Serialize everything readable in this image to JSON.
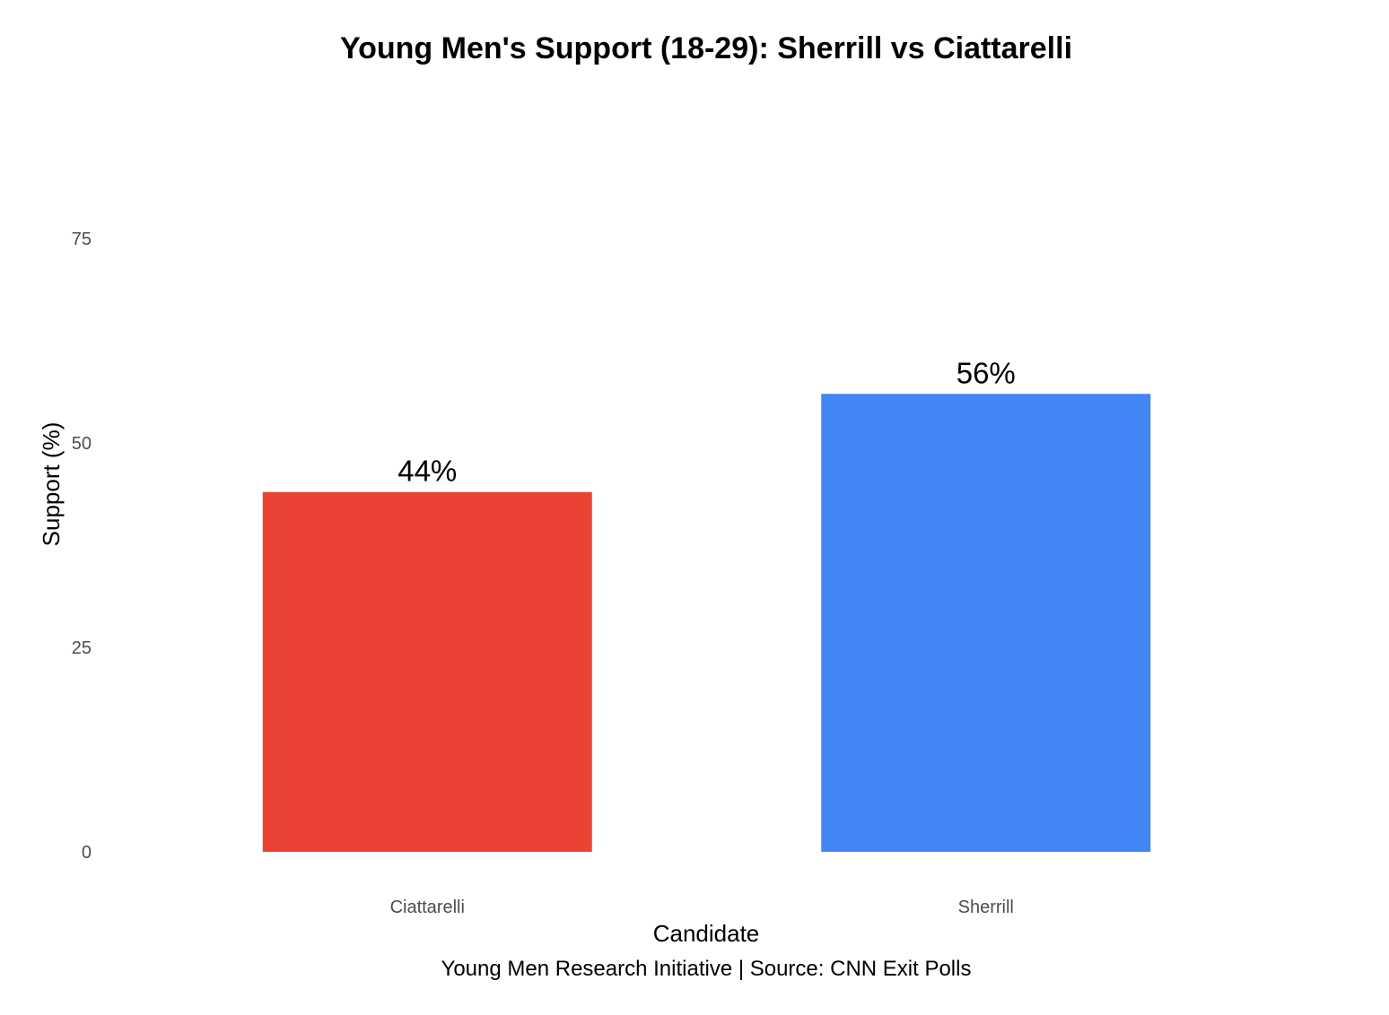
{
  "chart_data": {
    "type": "bar",
    "title": "Young Men's Support (18-29): Sherrill vs Ciattarelli",
    "xlabel": "Candidate",
    "ylabel": "Support (%)",
    "caption": "Young Men Research Initiative | Source: CNN Exit Polls",
    "categories": [
      "Ciattarelli",
      "Sherrill"
    ],
    "values": [
      44,
      56
    ],
    "data_labels": [
      "44%",
      "56%"
    ],
    "colors": [
      "#EA4335",
      "#4285F4"
    ],
    "ylim": [
      0,
      80
    ],
    "yticks": [
      0,
      25,
      50,
      75
    ],
    "ytick_labels": [
      "0",
      "25",
      "50",
      "75"
    ],
    "grid": false,
    "legend": "none"
  }
}
